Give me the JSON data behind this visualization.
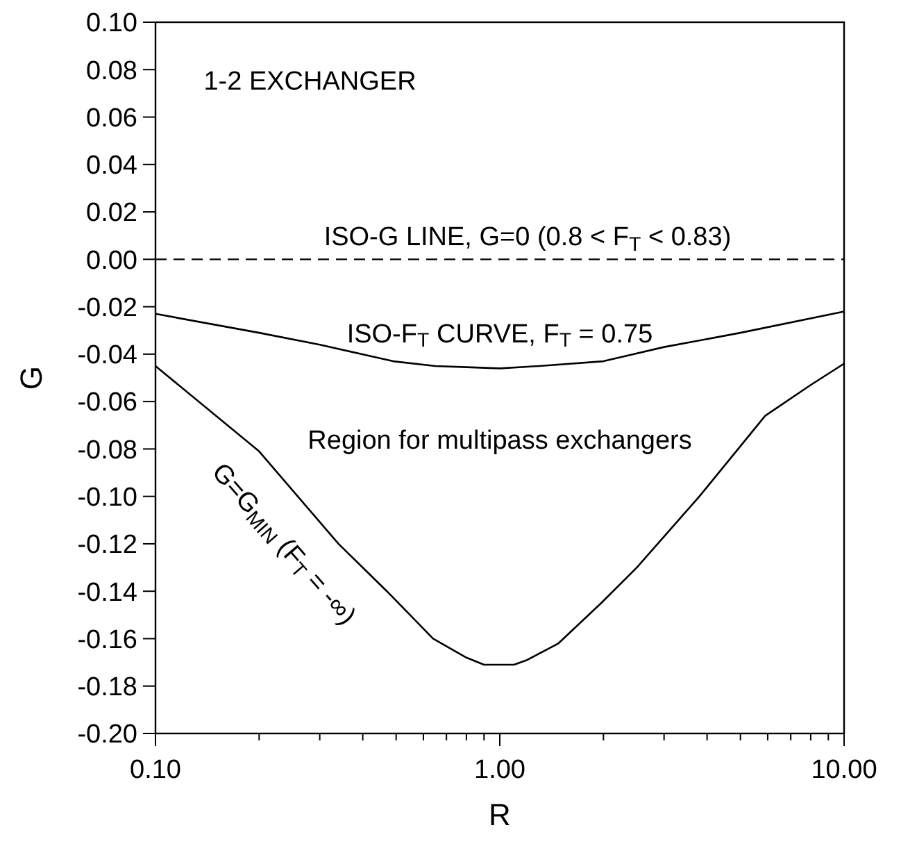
{
  "chart_data": {
    "type": "line",
    "xlabel": "R",
    "ylabel": "G",
    "log": "x",
    "grid": false,
    "xlim": [
      0.1,
      10
    ],
    "ylim": [
      -0.2,
      0.1
    ],
    "xticks": [
      {
        "value": 0.1,
        "label": "0.10"
      },
      {
        "value": 0.2,
        "label": null
      },
      {
        "value": 0.3,
        "label": null
      },
      {
        "value": 0.4,
        "label": null
      },
      {
        "value": 0.5,
        "label": null
      },
      {
        "value": 0.6,
        "label": null
      },
      {
        "value": 0.7,
        "label": null
      },
      {
        "value": 0.8,
        "label": null
      },
      {
        "value": 0.9,
        "label": null
      },
      {
        "value": 1,
        "label": "1.00"
      },
      {
        "value": 2,
        "label": null
      },
      {
        "value": 3,
        "label": null
      },
      {
        "value": 4,
        "label": null
      },
      {
        "value": 5,
        "label": null
      },
      {
        "value": 6,
        "label": null
      },
      {
        "value": 7,
        "label": null
      },
      {
        "value": 8,
        "label": null
      },
      {
        "value": 9,
        "label": null
      },
      {
        "value": 10,
        "label": "10.00"
      }
    ],
    "yticks": [
      {
        "value": 0.1,
        "label": "0.10"
      },
      {
        "value": 0.08,
        "label": "0.08"
      },
      {
        "value": 0.06,
        "label": "0.06"
      },
      {
        "value": 0.04,
        "label": "0.04"
      },
      {
        "value": 0.02,
        "label": "0.02"
      },
      {
        "value": 0,
        "label": "0.00"
      },
      {
        "value": -0.02,
        "label": "-0.02"
      },
      {
        "value": -0.04,
        "label": "-0.04"
      },
      {
        "value": -0.06,
        "label": "-0.06"
      },
      {
        "value": -0.08,
        "label": "-0.08"
      },
      {
        "value": -0.1,
        "label": "-0.10"
      },
      {
        "value": -0.12,
        "label": "-0.12"
      },
      {
        "value": -0.14,
        "label": "-0.14"
      },
      {
        "value": -0.16,
        "label": "-0.16"
      },
      {
        "value": -0.18,
        "label": "-0.18"
      },
      {
        "value": -0.2,
        "label": "-0.20"
      }
    ],
    "series": [
      {
        "color": "#000000",
        "line_style": "solid",
        "x": [
          0.1,
          0.2,
          0.3,
          0.49,
          0.65,
          0.8,
          1.0,
          1.3,
          2.0,
          3.0,
          5.0,
          10
        ],
        "values": [
          -0.023,
          -0.031,
          -0.036,
          -0.043,
          -0.045,
          -0.0455,
          -0.046,
          -0.045,
          -0.043,
          -0.037,
          -0.031,
          -0.022
        ]
      },
      {
        "color": "#000000",
        "line_style": "solid",
        "x": [
          0.1,
          0.2,
          0.34,
          0.47,
          0.64,
          0.8,
          0.9,
          1.0,
          1.1,
          1.2,
          1.48,
          1.97,
          2.5,
          3.8,
          5.9,
          8.0,
          10
        ],
        "values": [
          -0.045,
          -0.081,
          -0.12,
          -0.14,
          -0.16,
          -0.168,
          -0.171,
          -0.171,
          -0.171,
          -0.169,
          -0.162,
          -0.145,
          -0.13,
          -0.1,
          -0.066,
          -0.053,
          -0.044
        ]
      }
    ],
    "ref_lines": [
      {
        "axis": "y",
        "value": 0,
        "label": "ISO-G LINE, G=0 (0.8 < F$_{T}$ < 0.83)",
        "color": "#000000",
        "line_style": "dashed"
      }
    ],
    "annotations": [
      "1-2 EXCHANGER",
      "ISO-F$_{T}$ CURVE, F$_{T}$ = 0.75",
      "Region for multipass exchangers",
      "G=G$_{MIN}$ (F$_{T}$ = -∞)"
    ]
  }
}
